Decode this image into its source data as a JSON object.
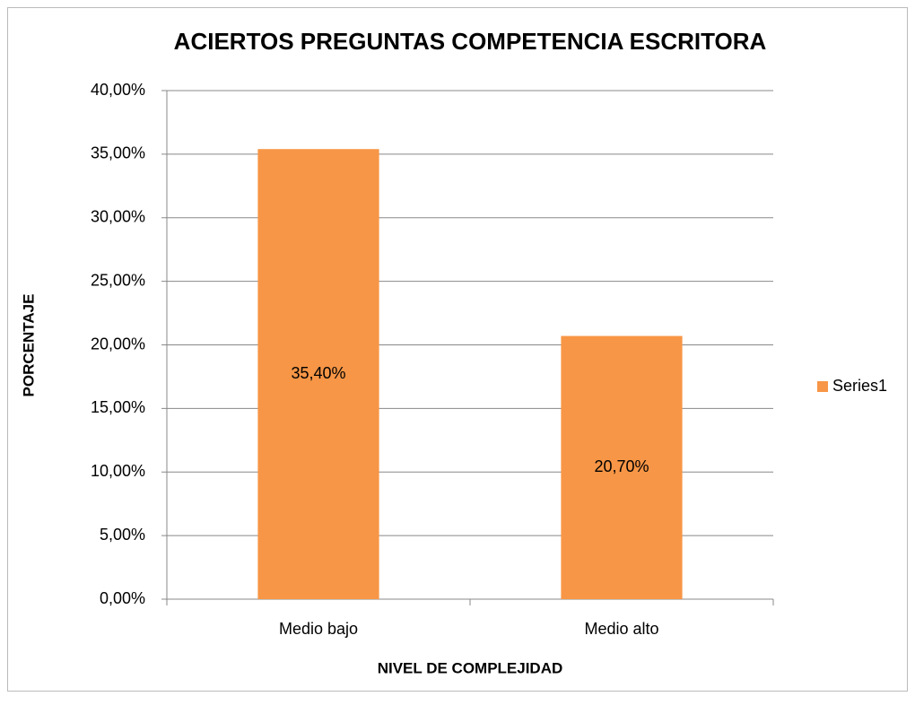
{
  "chart_data": {
    "type": "bar",
    "title": "ACIERTOS PREGUNTAS COMPETENCIA ESCRITORA",
    "x_label": "NIVEL DE COMPLEJIDAD",
    "y_label": "PORCENTAJE",
    "categories": [
      "Medio bajo",
      "Medio alto"
    ],
    "series": [
      {
        "name": "Series1",
        "color": "#f79646",
        "values": [
          35.4,
          20.7
        ],
        "value_labels": [
          "35,40%",
          "20,70%"
        ]
      }
    ],
    "ylim": [
      0,
      40
    ],
    "yticks": [
      {
        "value": 0,
        "label": "0,00%"
      },
      {
        "value": 5,
        "label": "5,00%"
      },
      {
        "value": 10,
        "label": "10,00%"
      },
      {
        "value": 15,
        "label": "15,00%"
      },
      {
        "value": 20,
        "label": "20,00%"
      },
      {
        "value": 25,
        "label": "25,00%"
      },
      {
        "value": 30,
        "label": "30,00%"
      },
      {
        "value": 35,
        "label": "35,00%"
      },
      {
        "value": 40,
        "label": "40,00%"
      }
    ],
    "grid": true,
    "legend": "right"
  }
}
